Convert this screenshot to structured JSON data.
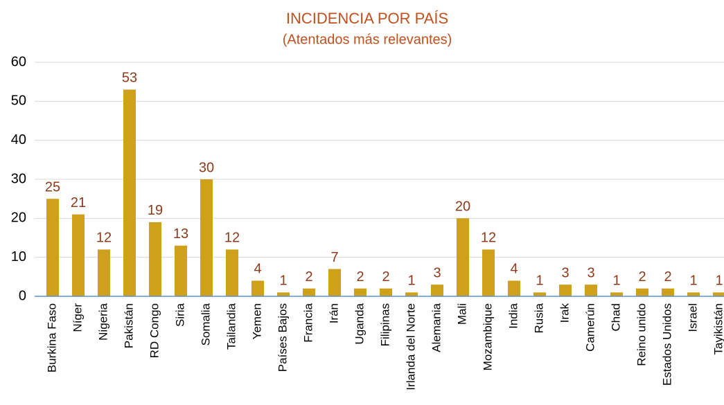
{
  "chart_data": {
    "type": "bar",
    "title": "INCIDENCIA POR PAÍS",
    "subtitle": "(Atentados más relevantes)",
    "categories": [
      "Burkina Faso",
      "Níger",
      "Nigeria",
      "Pakistán",
      "RD Congo",
      "Siria",
      "Somalia",
      "Tailandia",
      "Yemen",
      "Países Bajos",
      "Francia",
      "Irán",
      "Uganda",
      "Filipinas",
      "Irlanda del Norte",
      "Alemania",
      "Mali",
      "Mozambique",
      "India",
      "Rusia",
      "Irak",
      "Camerún",
      "Chad",
      "Reino unido",
      "Estados Unidos",
      "Israel",
      "Tayikistán"
    ],
    "values": [
      25,
      21,
      12,
      53,
      19,
      13,
      30,
      12,
      4,
      1,
      2,
      7,
      2,
      2,
      1,
      3,
      20,
      12,
      4,
      1,
      3,
      3,
      1,
      2,
      2,
      1,
      1
    ],
    "color": "#cfa01a",
    "ylim": [
      0,
      60
    ],
    "yticks": [
      0,
      10,
      20,
      30,
      40,
      50,
      60
    ],
    "grid": true
  }
}
